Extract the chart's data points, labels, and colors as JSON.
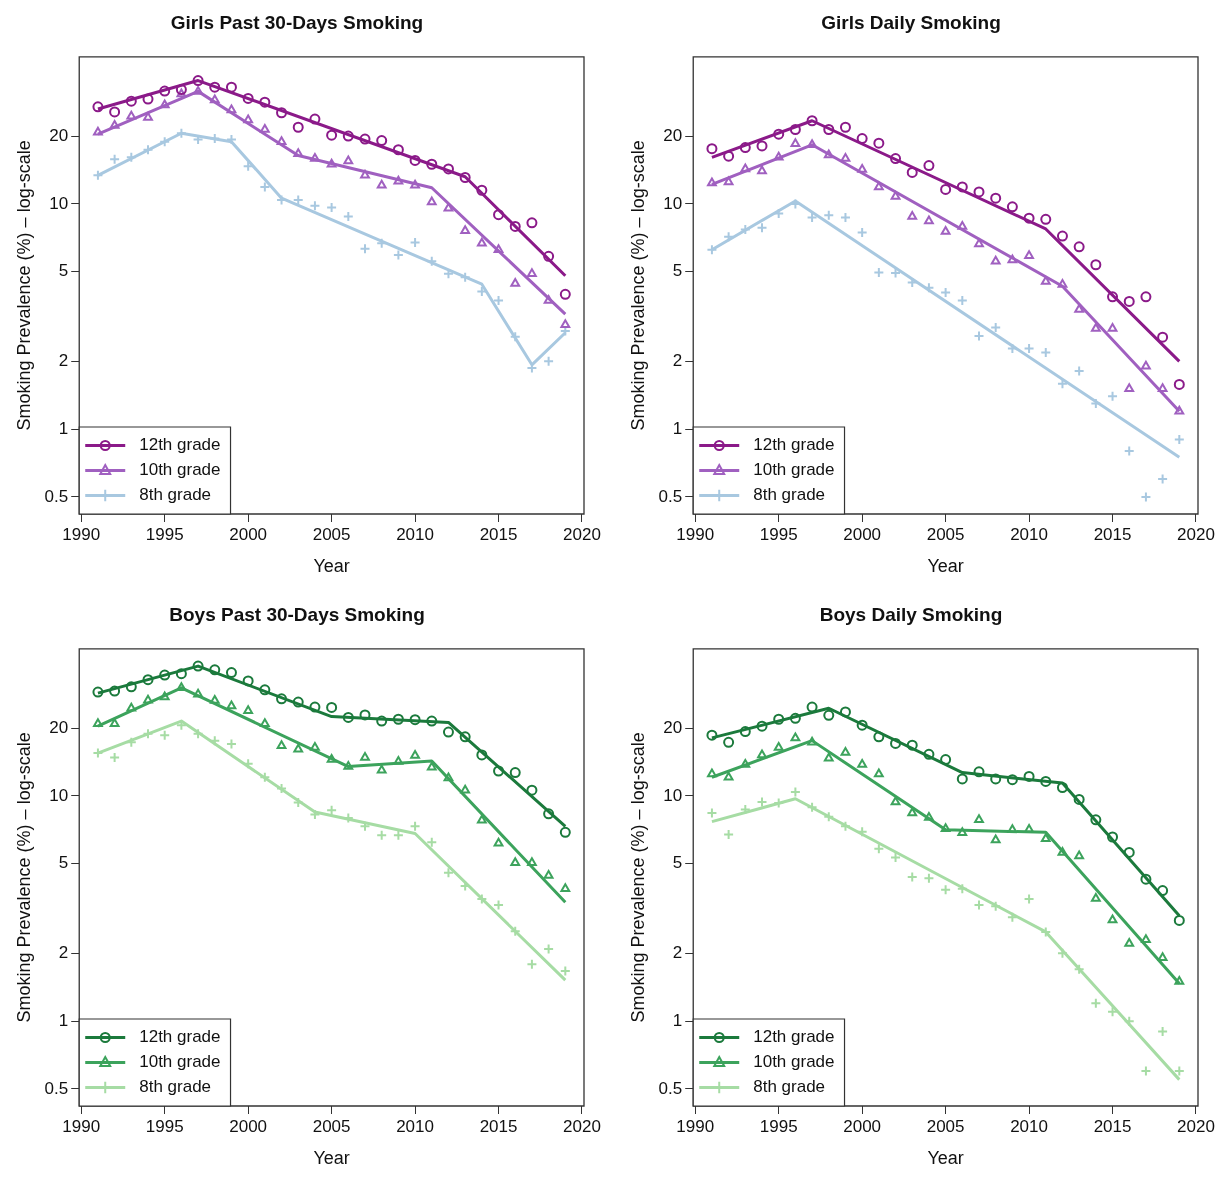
{
  "chart_data": [
    {
      "type": "scatter",
      "title": "Girls Past 30-Days Smoking",
      "xlabel": "Year",
      "ylabel": "Smoking Prevalence (%) – log-scale",
      "log": "y",
      "grid": false,
      "legend": "bottom left",
      "xlim": [
        1989.88,
        2020.12
      ],
      "xticks": [
        1990,
        1995,
        2000,
        2005,
        2010,
        2015,
        2020
      ],
      "ylim": [
        0.42,
        45
      ],
      "yticks": [
        0.5,
        1,
        2,
        5,
        10,
        20
      ],
      "x": [
        1991,
        1992,
        1993,
        1994,
        1995,
        1996,
        1997,
        1998,
        1999,
        2000,
        2001,
        2002,
        2003,
        2004,
        2005,
        2006,
        2007,
        2008,
        2009,
        2010,
        2011,
        2012,
        2013,
        2014,
        2015,
        2016,
        2017,
        2018,
        2019
      ],
      "series": [
        {
          "name": "12th grade",
          "type": "scatter",
          "marker": "circle",
          "color": "#8b1a89",
          "values": [
            27.0,
            25.6,
            28.6,
            29.2,
            31.7,
            32.2,
            35.3,
            33.0,
            33.0,
            29.4,
            28.3,
            25.4,
            21.9,
            23.8,
            20.2,
            20.0,
            19.4,
            19.1,
            17.4,
            15.6,
            15.0,
            14.3,
            13.1,
            11.5,
            8.96,
            7.94,
            8.24,
            5.85,
            3.97
          ]
        },
        {
          "name": "10th grade",
          "type": "scatter",
          "marker": "triangle",
          "color": "#a060c0",
          "values": [
            20.8,
            22.3,
            24.5,
            24.2,
            27.5,
            30.8,
            31.6,
            28.9,
            26.1,
            23.6,
            21.4,
            18.9,
            16.7,
            15.9,
            15.0,
            15.5,
            13.4,
            12.1,
            12.6,
            12.1,
            10.2,
            9.57,
            7.6,
            6.69,
            6.26,
            4.43,
            4.9,
            3.73,
            2.91
          ]
        },
        {
          "name": "8th grade",
          "type": "scatter",
          "marker": "cross",
          "color": "#a8c8e0",
          "values": [
            13.4,
            15.8,
            16.1,
            17.4,
            18.9,
            20.6,
            19.3,
            19.5,
            19.3,
            14.7,
            11.9,
            10.4,
            10.4,
            9.82,
            9.65,
            8.8,
            6.33,
            6.69,
            5.93,
            6.74,
            5.57,
            4.9,
            4.73,
            4.08,
            3.73,
            2.57,
            1.87,
            2.0,
            2.73
          ]
        },
        {
          "type": "line",
          "color": "#8b1a89",
          "x": [
            1991,
            1997,
            2013,
            2019
          ],
          "values": [
            26.4,
            35.3,
            13.2,
            4.8
          ]
        },
        {
          "type": "line",
          "color": "#a060c0",
          "x": [
            1991,
            1997,
            2003,
            2011,
            2019
          ],
          "values": [
            20.4,
            31.6,
            16.4,
            11.8,
            3.24
          ]
        },
        {
          "type": "line",
          "color": "#a8c8e0",
          "x": [
            1991,
            1996,
            1999,
            2002,
            2014,
            2017,
            2019
          ],
          "values": [
            13.4,
            20.6,
            18.9,
            10.6,
            4.4,
            1.93,
            2.68
          ]
        }
      ]
    },
    {
      "type": "scatter",
      "title": "Girls Daily Smoking",
      "xlabel": "Year",
      "ylabel": "Smoking Prevalence (%) – log-scale",
      "log": "y",
      "grid": false,
      "legend": "bottom left",
      "xlim": [
        1989.88,
        2020.12
      ],
      "xticks": [
        1990,
        1995,
        2000,
        2005,
        2010,
        2015,
        2020
      ],
      "ylim": [
        0.42,
        45
      ],
      "yticks": [
        0.5,
        1,
        2,
        5,
        10,
        20
      ],
      "x": [
        1991,
        1992,
        1993,
        1994,
        1995,
        1996,
        1997,
        1998,
        1999,
        2000,
        2001,
        2002,
        2003,
        2004,
        2005,
        2006,
        2007,
        2008,
        2009,
        2010,
        2011,
        2012,
        2013,
        2014,
        2015,
        2016,
        2017,
        2018,
        2019
      ],
      "series": [
        {
          "name": "12th grade",
          "type": "scatter",
          "marker": "circle",
          "color": "#8b1a89",
          "values": [
            17.6,
            16.3,
            17.8,
            18.1,
            20.4,
            21.4,
            23.4,
            21.4,
            21.9,
            19.5,
            18.6,
            15.9,
            13.8,
            14.8,
            11.6,
            11.9,
            11.3,
            10.6,
            9.71,
            8.64,
            8.54,
            7.2,
            6.45,
            5.37,
            3.87,
            3.69,
            3.87,
            2.56,
            1.58
          ]
        },
        {
          "name": "10th grade",
          "type": "scatter",
          "marker": "triangle",
          "color": "#a060c0",
          "values": [
            12.4,
            12.5,
            14.3,
            14.0,
            16.1,
            18.5,
            18.3,
            16.5,
            15.9,
            14.2,
            11.9,
            10.8,
            8.8,
            8.39,
            7.55,
            7.94,
            6.64,
            5.57,
            5.63,
            5.89,
            4.53,
            4.39,
            3.4,
            2.8,
            2.8,
            1.51,
            1.9,
            1.51,
            1.2
          ]
        },
        {
          "name": "8th grade",
          "type": "scatter",
          "marker": "cross",
          "color": "#a8c8e0",
          "values": [
            6.26,
            7.14,
            7.69,
            7.83,
            9.06,
            10.0,
            8.7,
            8.9,
            8.7,
            7.46,
            4.96,
            4.94,
            4.48,
            4.24,
            4.04,
            3.73,
            2.59,
            2.83,
            2.28,
            2.28,
            2.19,
            1.59,
            1.81,
            1.3,
            1.4,
            0.8,
            0.5,
            0.6,
            0.9
          ]
        },
        {
          "type": "line",
          "color": "#8b1a89",
          "x": [
            1991,
            1997,
            2011,
            2019
          ],
          "values": [
            16.1,
            23.4,
            7.74,
            2.0
          ]
        },
        {
          "type": "line",
          "color": "#a060c0",
          "x": [
            1991,
            1997,
            2012,
            2019
          ],
          "values": [
            12.2,
            18.3,
            4.31,
            1.2
          ]
        },
        {
          "type": "line",
          "color": "#a8c8e0",
          "x": [
            1991,
            1996,
            2019
          ],
          "values": [
            6.26,
            10.3,
            0.75
          ]
        }
      ]
    },
    {
      "type": "scatter",
      "title": "Boys Past 30-Days Smoking",
      "xlabel": "Year",
      "ylabel": "Smoking Prevalence (%) – log-scale",
      "log": "y",
      "grid": false,
      "legend": "bottom left",
      "xlim": [
        1989.88,
        2020.12
      ],
      "xticks": [
        1990,
        1995,
        2000,
        2005,
        2010,
        2015,
        2020
      ],
      "ylim": [
        0.42,
        45
      ],
      "yticks": [
        0.5,
        1,
        2,
        5,
        10,
        20
      ],
      "x": [
        1991,
        1992,
        1993,
        1994,
        1995,
        1996,
        1997,
        1998,
        1999,
        2000,
        2001,
        2002,
        2003,
        2004,
        2005,
        2006,
        2007,
        2008,
        2009,
        2010,
        2011,
        2012,
        2013,
        2014,
        2015,
        2016,
        2017,
        2018,
        2019
      ],
      "series": [
        {
          "name": "12th grade",
          "type": "scatter",
          "marker": "circle",
          "color": "#1b7a3c",
          "values": [
            28.9,
            29.2,
            30.5,
            32.8,
            34.4,
            34.9,
            37.7,
            36.3,
            35.3,
            32.4,
            29.6,
            27.0,
            26.1,
            24.8,
            24.7,
            22.3,
            22.9,
            21.5,
            21.9,
            21.8,
            21.5,
            19.2,
            18.3,
            15.2,
            12.9,
            12.7,
            10.6,
            8.33,
            6.89
          ]
        },
        {
          "name": "10th grade",
          "type": "scatter",
          "marker": "triangle",
          "color": "#3ca35c",
          "values": [
            20.9,
            20.9,
            24.5,
            26.6,
            27.5,
            30.2,
            28.3,
            26.5,
            25.1,
            23.9,
            20.9,
            16.7,
            16.1,
            16.4,
            14.5,
            13.5,
            14.8,
            13.0,
            14.2,
            15.1,
            13.4,
            12.0,
            10.6,
            7.8,
            6.17,
            5.05,
            5.05,
            4.43,
            3.87
          ]
        },
        {
          "name": "8th grade",
          "type": "scatter",
          "marker": "cross",
          "color": "#a6dca4",
          "values": [
            15.5,
            14.8,
            17.3,
            18.9,
            18.6,
            20.6,
            18.9,
            17.6,
            17.0,
            13.9,
            12.1,
            10.8,
            9.36,
            8.27,
            8.64,
            7.97,
            7.33,
            6.69,
            6.69,
            7.33,
            6.22,
            4.56,
            3.98,
            3.49,
            3.28,
            2.51,
            1.79,
            2.09,
            1.67
          ]
        },
        {
          "type": "line",
          "color": "#1b7a3c",
          "x": [
            1991,
            1997,
            2005,
            2012,
            2019
          ],
          "values": [
            28.6,
            37.7,
            22.5,
            21.2,
            7.33
          ]
        },
        {
          "type": "line",
          "color": "#3ca35c",
          "x": [
            1991,
            1996,
            2006,
            2011,
            2019
          ],
          "values": [
            20.4,
            30.2,
            13.5,
            14.3,
            3.37
          ]
        },
        {
          "type": "line",
          "color": "#a6dca4",
          "x": [
            1991,
            1996,
            2004,
            2010,
            2019
          ],
          "values": [
            15.5,
            21.5,
            8.48,
            6.81,
            1.52
          ]
        }
      ]
    },
    {
      "type": "scatter",
      "title": "Boys Daily Smoking",
      "xlabel": "Year",
      "ylabel": "Smoking Prevalence (%) – log-scale",
      "log": "y",
      "grid": false,
      "legend": "bottom left",
      "xlim": [
        1989.88,
        2020.12
      ],
      "xticks": [
        1990,
        1995,
        2000,
        2005,
        2010,
        2015,
        2020
      ],
      "ylim": [
        0.42,
        45
      ],
      "yticks": [
        0.5,
        1,
        2,
        5,
        10,
        20
      ],
      "x": [
        1991,
        1992,
        1993,
        1994,
        1995,
        1996,
        1997,
        1998,
        1999,
        2000,
        2001,
        2002,
        2003,
        2004,
        2005,
        2006,
        2007,
        2008,
        2009,
        2010,
        2011,
        2012,
        2013,
        2014,
        2015,
        2016,
        2017,
        2018,
        2019
      ],
      "series": [
        {
          "name": "12th grade",
          "type": "scatter",
          "marker": "circle",
          "color": "#1b7a3c",
          "values": [
            18.6,
            17.3,
            19.3,
            20.4,
            21.9,
            22.1,
            24.8,
            22.8,
            23.6,
            20.6,
            18.3,
            17.1,
            16.8,
            15.3,
            14.5,
            11.9,
            12.8,
            11.9,
            11.8,
            12.2,
            11.6,
            10.9,
            9.65,
            7.83,
            6.57,
            5.61,
            4.27,
            3.8,
            2.8
          ]
        },
        {
          "name": "10th grade",
          "type": "scatter",
          "marker": "triangle",
          "color": "#3ca35c",
          "values": [
            12.5,
            12.1,
            13.8,
            15.2,
            16.4,
            18.1,
            17.3,
            14.7,
            15.6,
            13.8,
            12.5,
            9.4,
            8.39,
            8.03,
            7.14,
            6.87,
            7.83,
            6.38,
            7.07,
            7.1,
            6.45,
            5.61,
            5.41,
            3.5,
            2.81,
            2.21,
            2.3,
            1.91,
            1.5
          ]
        },
        {
          "name": "8th grade",
          "type": "scatter",
          "marker": "cross",
          "color": "#a6dca4",
          "values": [
            8.39,
            6.74,
            8.7,
            9.4,
            9.29,
            10.4,
            8.9,
            8.09,
            7.33,
            6.94,
            5.82,
            5.33,
            4.36,
            4.31,
            3.83,
            3.87,
            3.28,
            3.24,
            2.89,
            3.49,
            2.49,
            2.0,
            1.7,
            1.2,
            1.1,
            1.0,
            0.6,
            0.9,
            0.6
          ]
        },
        {
          "type": "line",
          "color": "#1b7a3c",
          "x": [
            1991,
            1998,
            2006,
            2012,
            2019
          ],
          "values": [
            18.1,
            24.5,
            12.7,
            11.4,
            2.94
          ]
        },
        {
          "type": "line",
          "color": "#3ca35c",
          "x": [
            1991,
            1997,
            2005,
            2011,
            2019
          ],
          "values": [
            12.1,
            17.6,
            7.07,
            6.89,
            1.47
          ]
        },
        {
          "type": "line",
          "color": "#a6dca4",
          "x": [
            1991,
            1996,
            2011,
            2019
          ],
          "values": [
            7.69,
            9.71,
            2.49,
            0.55
          ]
        }
      ]
    }
  ]
}
